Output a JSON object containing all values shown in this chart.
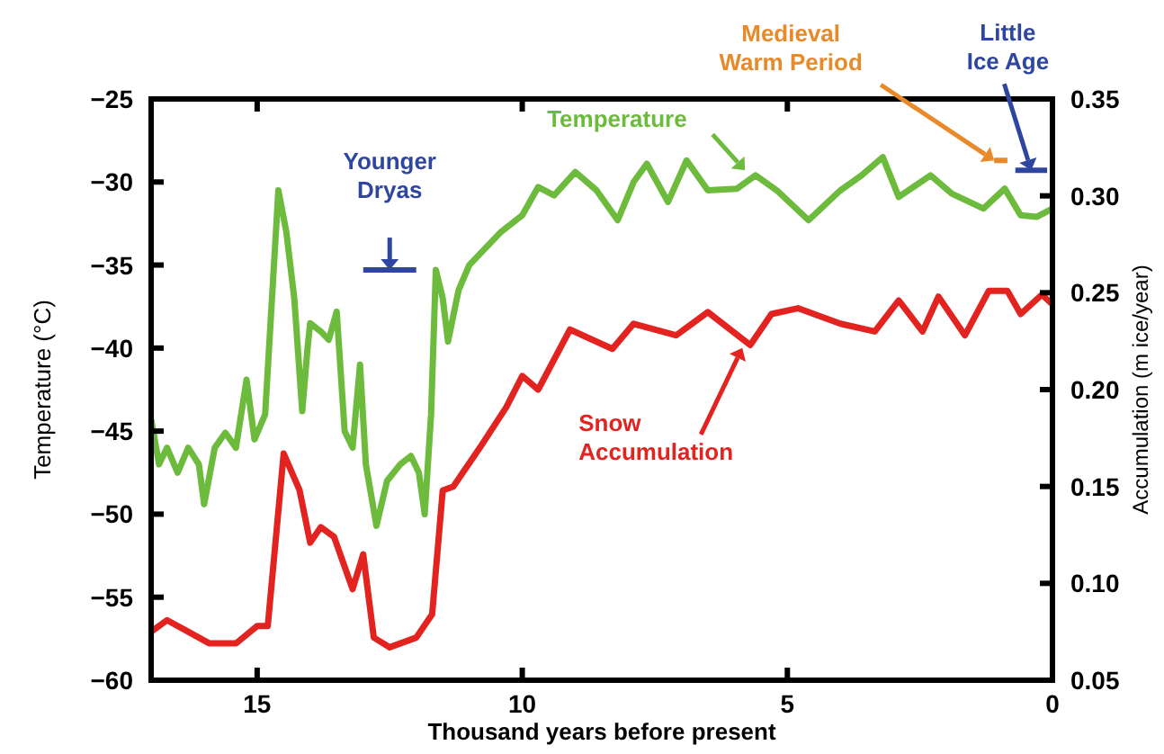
{
  "chart_data": {
    "type": "line",
    "xlabel": "Thousand years before present",
    "ylabel": "Temperature (°C)",
    "y2label": "Accumulation (m ice/year)",
    "xlim": [
      17,
      0
    ],
    "xticks": [
      15,
      10,
      5,
      0
    ],
    "ylim": [
      -60,
      -25
    ],
    "yticks": [
      -60,
      -55,
      -50,
      -45,
      -40,
      -35,
      -30,
      -25
    ],
    "y2lim": [
      0.05,
      0.35
    ],
    "y2ticks": [
      0.05,
      {
        "value": 0.1,
        "label": "0.10"
      },
      0.15,
      {
        "value": 0.2,
        "label": "0.20"
      },
      0.25,
      {
        "value": 0.3,
        "label": "0.30"
      },
      0.35
    ],
    "grid": false,
    "legend": false,
    "line_style": "solid",
    "marker": "none",
    "series": [
      {
        "color": "#6cbb3c",
        "x": [
          17.0,
          16.85,
          16.7,
          16.5,
          16.3,
          16.1,
          16.0,
          15.8,
          15.6,
          15.4,
          15.2,
          15.05,
          14.85,
          14.6,
          14.45,
          14.3,
          14.15,
          14.05,
          14.0,
          13.8,
          13.65,
          13.5,
          13.35,
          13.2,
          13.06,
          12.95,
          12.75,
          12.55,
          12.3,
          12.1,
          11.95,
          11.84,
          11.72,
          11.63,
          11.5,
          11.4,
          11.2,
          11.0,
          10.7,
          10.4,
          10.0,
          9.7,
          9.4,
          9.0,
          8.6,
          8.2,
          7.9,
          7.65,
          7.25,
          6.9,
          6.5,
          5.95,
          5.6,
          5.2,
          4.6,
          4.0,
          3.6,
          3.2,
          2.9,
          2.3,
          1.9,
          1.3,
          0.9,
          0.6,
          0.3,
          0.0
        ],
        "values": [
          -44.3,
          -47,
          -46,
          -47.5,
          -46,
          -47,
          -49.4,
          -46,
          -45.1,
          -46,
          -41.9,
          -45.5,
          -44,
          -30.5,
          -33,
          -37,
          -43.8,
          -40,
          -38.5,
          -39,
          -39.5,
          -37.8,
          -45,
          -46,
          -41,
          -47,
          -50.7,
          -48,
          -47,
          -46.5,
          -47.5,
          -50,
          -44,
          -35.3,
          -37,
          -39.6,
          -36.5,
          -35,
          -34,
          -33,
          -32,
          -30.3,
          -30.8,
          -29.4,
          -30.5,
          -32.3,
          -30,
          -28.9,
          -31.2,
          -28.7,
          -30.5,
          -30.4,
          -29.6,
          -30.5,
          -32.3,
          -30.5,
          -29.6,
          -28.5,
          -30.9,
          -29.6,
          -30.7,
          -31.6,
          -30.4,
          -32,
          -32.1,
          -31.6
        ]
      },
      {
        "color": "#e3231f",
        "axis": "y2",
        "x": [
          17.0,
          16.7,
          16.3,
          15.9,
          15.4,
          15.0,
          14.8,
          14.5,
          14.2,
          14.0,
          13.8,
          13.55,
          13.2,
          13.0,
          12.8,
          12.5,
          12.0,
          11.7,
          11.5,
          11.3,
          10.8,
          10.3,
          10.0,
          9.7,
          9.1,
          8.3,
          7.9,
          7.1,
          6.5,
          5.7,
          5.3,
          4.8,
          4.0,
          3.35,
          2.9,
          2.45,
          2.15,
          1.65,
          1.2,
          0.85,
          0.6,
          0.2,
          0.0
        ],
        "values": [
          0.075,
          0.081,
          0.075,
          0.069,
          0.069,
          0.078,
          0.078,
          0.167,
          0.148,
          0.121,
          0.129,
          0.124,
          0.097,
          0.115,
          0.072,
          0.067,
          0.072,
          0.084,
          0.148,
          0.15,
          0.17,
          0.191,
          0.207,
          0.2,
          0.231,
          0.221,
          0.234,
          0.228,
          0.24,
          0.223,
          0.239,
          0.242,
          0.234,
          0.23,
          0.246,
          0.23,
          0.248,
          0.228,
          0.251,
          0.251,
          0.239,
          0.249,
          0.244
        ]
      },
      {
        "color": "#2f46a0",
        "x": [
          13.0,
          12.0
        ],
        "values": [
          -35.3,
          -35.3
        ]
      },
      {
        "color": "#e8892a",
        "x": [
          1.1,
          0.85
        ],
        "values": [
          -28.7,
          -28.7
        ]
      },
      {
        "color": "#2f46a0",
        "x": [
          0.7,
          0.1
        ],
        "values": [
          -29.3,
          -29.3
        ]
      }
    ],
    "annotations": [
      {
        "text": "Temperature",
        "x": 5.8,
        "y": -29.3
      },
      {
        "text": "Snow Accumulation",
        "x": 5.85,
        "y": -40
      },
      {
        "text": "Younger Dryas",
        "x": 12.5,
        "y": -35.3
      },
      {
        "text": "Medieval Warm Period",
        "x": 1.1,
        "y": -28.7
      },
      {
        "text": "Little Ice Age",
        "x": 0.4,
        "y": -29.3
      }
    ]
  }
}
